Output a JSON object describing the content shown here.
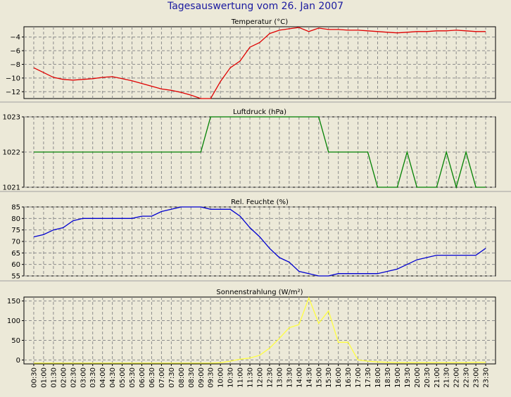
{
  "page": {
    "title": "Tagesauswertung vom 26. Jan 2007"
  },
  "chart_data": [
    {
      "type": "line",
      "title": "Temperatur (°C)",
      "color": "#e00000",
      "ylim": [
        -13,
        -2.5
      ],
      "yticks": [
        -4,
        -6,
        -8,
        -10,
        -12
      ],
      "x": [
        "00:30",
        "01:00",
        "01:30",
        "02:00",
        "02:30",
        "03:00",
        "03:30",
        "04:00",
        "04:30",
        "05:00",
        "05:30",
        "06:00",
        "06:30",
        "07:00",
        "07:30",
        "08:00",
        "08:30",
        "09:00",
        "09:30",
        "10:00",
        "10:30",
        "11:00",
        "11:30",
        "12:00",
        "12:30",
        "13:00",
        "13:30",
        "14:00",
        "14:30",
        "15:00",
        "15:30",
        "16:00",
        "16:30",
        "17:00",
        "17:30",
        "18:00",
        "18:30",
        "19:00",
        "19:30",
        "20:00",
        "20:30",
        "21:00",
        "21:30",
        "22:00",
        "22:30",
        "23:00",
        "23:30"
      ],
      "values": [
        -8.5,
        -9.2,
        -9.9,
        -10.2,
        -10.3,
        -10.2,
        -10.1,
        -9.9,
        -9.8,
        -10.1,
        -10.4,
        -10.8,
        -11.2,
        -11.6,
        -11.8,
        -12.1,
        -12.5,
        -13.0,
        -13.1,
        -10.5,
        -8.5,
        -7.5,
        -5.5,
        -4.8,
        -3.5,
        -3.0,
        -2.8,
        -2.6,
        -3.2,
        -2.7,
        -2.9,
        -2.9,
        -3.0,
        -3.0,
        -3.1,
        -3.2,
        -3.3,
        -3.4,
        -3.3,
        -3.2,
        -3.2,
        -3.1,
        -3.1,
        -3.0,
        -3.1,
        -3.2,
        -3.2
      ]
    },
    {
      "type": "line",
      "title": "Luftdruck (hPa)",
      "color": "#008000",
      "ylim": [
        1021,
        1023
      ],
      "yticks": [
        1023,
        1022,
        1021
      ],
      "x": [
        "00:30",
        "01:00",
        "01:30",
        "02:00",
        "02:30",
        "03:00",
        "03:30",
        "04:00",
        "04:30",
        "05:00",
        "05:30",
        "06:00",
        "06:30",
        "07:00",
        "07:30",
        "08:00",
        "08:30",
        "09:00",
        "09:30",
        "10:00",
        "10:30",
        "11:00",
        "11:30",
        "12:00",
        "12:30",
        "13:00",
        "13:30",
        "14:00",
        "14:30",
        "15:00",
        "15:30",
        "16:00",
        "16:30",
        "17:00",
        "17:30",
        "18:00",
        "18:30",
        "19:00",
        "19:30",
        "20:00",
        "20:30",
        "21:00",
        "21:30",
        "22:00",
        "22:30",
        "23:00",
        "23:30"
      ],
      "values": [
        1022,
        1022,
        1022,
        1022,
        1022,
        1022,
        1022,
        1022,
        1022,
        1022,
        1022,
        1022,
        1022,
        1022,
        1022,
        1022,
        1022,
        1022,
        1023,
        1023,
        1023,
        1023,
        1023,
        1023,
        1023,
        1023,
        1023,
        1023,
        1023,
        1023,
        1022,
        1022,
        1022,
        1022,
        1022,
        1021,
        1021,
        1021,
        1022,
        1021,
        1021,
        1021,
        1022,
        1021,
        1022,
        1021,
        1021
      ]
    },
    {
      "type": "line",
      "title": "Rel. Feuchte (%)",
      "color": "#0000d0",
      "ylim": [
        55,
        85
      ],
      "yticks": [
        85,
        80,
        75,
        70,
        65,
        60,
        55
      ],
      "x": [
        "00:30",
        "01:00",
        "01:30",
        "02:00",
        "02:30",
        "03:00",
        "03:30",
        "04:00",
        "04:30",
        "05:00",
        "05:30",
        "06:00",
        "06:30",
        "07:00",
        "07:30",
        "08:00",
        "08:30",
        "09:00",
        "09:30",
        "10:00",
        "10:30",
        "11:00",
        "11:30",
        "12:00",
        "12:30",
        "13:00",
        "13:30",
        "14:00",
        "14:30",
        "15:00",
        "15:30",
        "16:00",
        "16:30",
        "17:00",
        "17:30",
        "18:00",
        "18:30",
        "19:00",
        "19:30",
        "20:00",
        "20:30",
        "21:00",
        "21:30",
        "22:00",
        "22:30",
        "23:00",
        "23:30"
      ],
      "values": [
        72,
        73,
        75,
        76,
        79,
        80,
        80,
        80,
        80,
        80,
        80,
        81,
        81,
        83,
        84,
        85,
        85,
        85,
        84,
        84,
        84,
        81,
        76,
        72,
        67,
        63,
        61,
        57,
        56,
        55,
        55,
        56,
        56,
        56,
        56,
        56,
        57,
        58,
        60,
        62,
        63,
        64,
        64,
        64,
        64,
        64,
        67
      ]
    },
    {
      "type": "line",
      "title": "Sonnenstrahlung (W/m²)",
      "color": "#ffff40",
      "ylim": [
        -10,
        160
      ],
      "yticks": [
        150,
        100,
        50,
        0
      ],
      "x": [
        "00:30",
        "01:00",
        "01:30",
        "02:00",
        "02:30",
        "03:00",
        "03:30",
        "04:00",
        "04:30",
        "05:00",
        "05:30",
        "06:00",
        "06:30",
        "07:00",
        "07:30",
        "08:00",
        "08:30",
        "09:00",
        "09:30",
        "10:00",
        "10:30",
        "11:00",
        "11:30",
        "12:00",
        "12:30",
        "13:00",
        "13:30",
        "14:00",
        "14:30",
        "15:00",
        "15:30",
        "16:00",
        "16:30",
        "17:00",
        "17:30",
        "18:00",
        "18:30",
        "19:00",
        "19:30",
        "20:00",
        "20:30",
        "21:00",
        "21:30",
        "22:00",
        "22:30",
        "23:00",
        "23:30"
      ],
      "values": [
        -8,
        -8,
        -8,
        -8,
        -8,
        -8,
        -8,
        -8,
        -8,
        -8,
        -8,
        -8,
        -8,
        -8,
        -8,
        -8,
        -8,
        -8,
        -8,
        -7,
        -3,
        2,
        5,
        12,
        30,
        55,
        82,
        90,
        158,
        93,
        125,
        45,
        45,
        0,
        -3,
        -5,
        -6,
        -7,
        -7,
        -7,
        -7,
        -7,
        -7,
        -7,
        -7,
        -6,
        -6
      ]
    }
  ]
}
